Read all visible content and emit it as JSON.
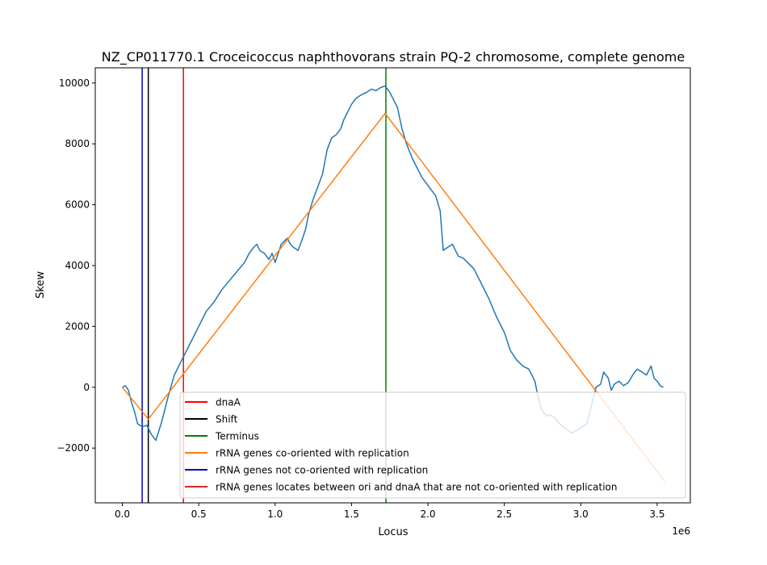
{
  "chart_data": {
    "type": "line",
    "title": "NZ_CP011770.1 Croceicoccus naphthovorans strain PQ-2 chromosome, complete genome",
    "xlabel": "Locus",
    "ylabel": "Skew",
    "x_offset_label": "1e6",
    "xlim": [
      -0.177,
      3.717
    ],
    "ylim": [
      -3800,
      10500
    ],
    "x_ticks": [
      0.0,
      0.5,
      1.0,
      1.5,
      2.0,
      2.5,
      3.0,
      3.5
    ],
    "x_tick_labels": [
      "0.0",
      "0.5",
      "1.0",
      "1.5",
      "2.0",
      "2.5",
      "3.0",
      "3.5"
    ],
    "y_ticks": [
      -2000,
      0,
      2000,
      4000,
      6000,
      8000,
      10000
    ],
    "y_tick_labels": [
      "−2000",
      "0",
      "2000",
      "4000",
      "6000",
      "8000",
      "10000"
    ],
    "grid": false,
    "legend_position": "lower-right",
    "series": [
      {
        "color": "#1f77b4",
        "x": [
          0.0,
          0.02,
          0.04,
          0.06,
          0.08,
          0.1,
          0.13,
          0.16,
          0.19,
          0.22,
          0.26,
          0.3,
          0.34,
          0.38,
          0.42,
          0.46,
          0.5,
          0.55,
          0.6,
          0.65,
          0.7,
          0.75,
          0.8,
          0.83,
          0.86,
          0.88,
          0.9,
          0.93,
          0.96,
          0.98,
          1.0,
          1.02,
          1.04,
          1.06,
          1.08,
          1.1,
          1.12,
          1.15,
          1.18,
          1.2,
          1.22,
          1.25,
          1.28,
          1.31,
          1.34,
          1.37,
          1.4,
          1.43,
          1.45,
          1.48,
          1.5,
          1.53,
          1.56,
          1.6,
          1.63,
          1.66,
          1.69,
          1.72,
          1.75,
          1.78,
          1.8,
          1.83,
          1.86,
          1.9,
          1.93,
          1.96,
          1.99,
          2.02,
          2.05,
          2.08,
          2.1,
          2.13,
          2.16,
          2.2,
          2.23,
          2.26,
          2.3,
          2.35,
          2.4,
          2.45,
          2.5,
          2.54,
          2.58,
          2.62,
          2.66,
          2.7,
          2.72,
          2.74,
          2.76,
          2.78,
          2.8,
          2.83,
          2.86,
          2.9,
          2.94,
          2.98,
          3.01,
          3.04,
          3.07,
          3.1,
          3.13,
          3.15,
          3.18,
          3.2,
          3.22,
          3.25,
          3.28,
          3.31,
          3.34,
          3.37,
          3.4,
          3.43,
          3.46,
          3.48,
          3.5,
          3.52,
          3.54
        ],
        "values": [
          0,
          50,
          -100,
          -500,
          -800,
          -1200,
          -1300,
          -1250,
          -1550,
          -1750,
          -1100,
          -300,
          400,
          800,
          1200,
          1600,
          2000,
          2500,
          2800,
          3200,
          3500,
          3800,
          4100,
          4400,
          4600,
          4700,
          4500,
          4400,
          4200,
          4400,
          4100,
          4400,
          4700,
          4800,
          4900,
          4700,
          4600,
          4500,
          4900,
          5200,
          5700,
          6200,
          6600,
          7000,
          7800,
          8200,
          8300,
          8500,
          8800,
          9100,
          9300,
          9500,
          9600,
          9700,
          9800,
          9750,
          9850,
          9900,
          9700,
          9400,
          9200,
          8500,
          8000,
          7500,
          7200,
          6900,
          6700,
          6500,
          6300,
          5800,
          4500,
          4600,
          4700,
          4300,
          4250,
          4100,
          3900,
          3400,
          2900,
          2300,
          1800,
          1200,
          900,
          700,
          600,
          200,
          -300,
          -700,
          -850,
          -950,
          -900,
          -1000,
          -1200,
          -1350,
          -1500,
          -1400,
          -1300,
          -1200,
          -600,
          0,
          100,
          500,
          300,
          -100,
          100,
          200,
          50,
          150,
          400,
          600,
          500,
          400,
          700,
          300,
          200,
          50,
          0
        ]
      },
      {
        "color": "#ff7f0e",
        "x": [
          0.0,
          0.17,
          1.72,
          3.55
        ],
        "values": [
          0,
          -1050,
          9000,
          -3100
        ]
      }
    ],
    "vlines": [
      {
        "x": 0.4,
        "color": "#ff0000"
      },
      {
        "x": 0.17,
        "color": "#000000"
      },
      {
        "x": 1.725,
        "color": "#008000"
      },
      {
        "x": 0.13,
        "color": "#0000cc"
      }
    ],
    "legend": [
      {
        "label": "dnaA",
        "color": "#ff0000"
      },
      {
        "label": "Shift",
        "color": "#000000"
      },
      {
        "label": "Terminus",
        "color": "#008000"
      },
      {
        "label": "rRNA genes co-oriented with replication",
        "color": "#ff7f0e"
      },
      {
        "label": "rRNA genes not co-oriented with replication",
        "color": "#0000cc"
      },
      {
        "label": "rRNA genes locates between ori and dnaA that are not co-oriented with replication",
        "color": "#d62728"
      }
    ]
  }
}
